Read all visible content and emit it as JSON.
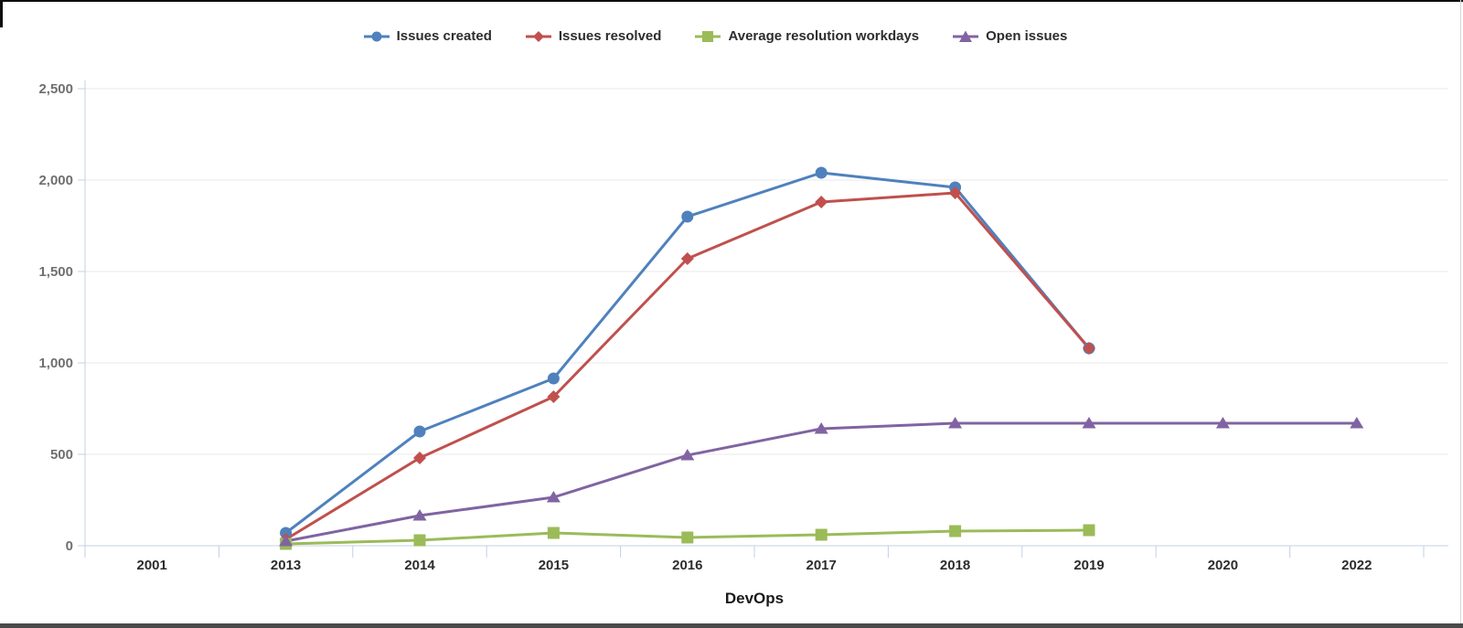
{
  "window": {
    "bottom_bar_color": "#4a4a4a",
    "edge_color": "#0d0d0d"
  },
  "chart_data": {
    "type": "line",
    "title": "",
    "xlabel": "DevOps",
    "ylabel": "",
    "categories": [
      "2001",
      "2013",
      "2014",
      "2015",
      "2016",
      "2017",
      "2018",
      "2019",
      "2020",
      "2022"
    ],
    "y_ticks": [
      {
        "value": 0,
        "label": "0"
      },
      {
        "value": 500,
        "label": "500"
      },
      {
        "value": 1000,
        "label": "1,000"
      },
      {
        "value": 1500,
        "label": "1,500"
      },
      {
        "value": 2000,
        "label": "2,000"
      },
      {
        "value": 2500,
        "label": "2,500"
      }
    ],
    "ylim": [
      0,
      2500
    ],
    "grid": true,
    "legend_position": "top",
    "colors": {
      "gridline": "#e8e8e8",
      "axis": "#c3d0e6",
      "y_tick_text": "#6f6f6f",
      "x_tick_text": "#2d2d2d"
    },
    "series": [
      {
        "name": "Issues created",
        "color": "#4F81BD",
        "marker": "circle",
        "values": [
          null,
          70,
          625,
          915,
          1800,
          2040,
          1960,
          1080,
          null,
          null
        ]
      },
      {
        "name": "Issues resolved",
        "color": "#C0504D",
        "marker": "diamond",
        "values": [
          null,
          35,
          480,
          815,
          1570,
          1880,
          1930,
          1080,
          null,
          null
        ]
      },
      {
        "name": "Average resolution workdays",
        "color": "#9BBB59",
        "marker": "square",
        "values": [
          null,
          10,
          30,
          70,
          45,
          60,
          80,
          85,
          null,
          null
        ]
      },
      {
        "name": "Open issues",
        "color": "#8064A2",
        "marker": "triangle",
        "values": [
          null,
          25,
          165,
          265,
          495,
          640,
          670,
          670,
          670,
          670
        ]
      }
    ]
  }
}
